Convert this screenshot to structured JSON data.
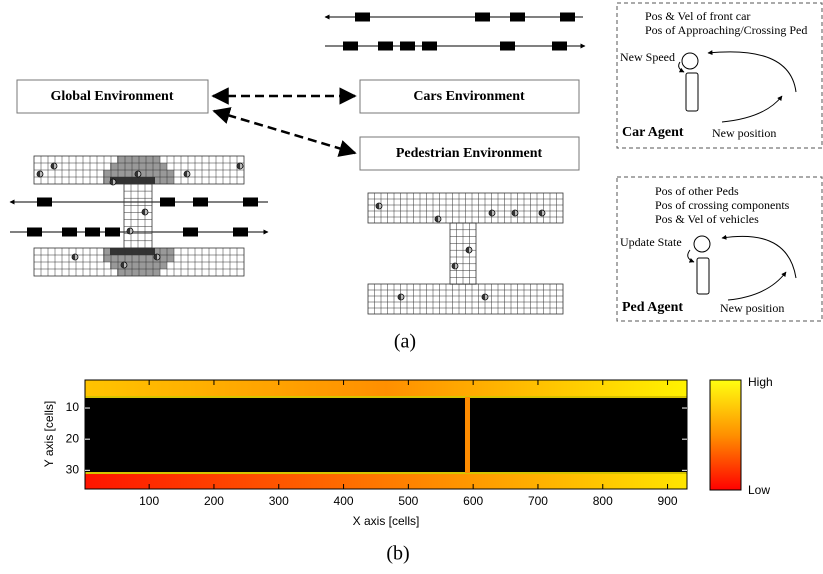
{
  "figure_a": {
    "global_environment": "Global Environment",
    "cars_environment": "Cars Environment",
    "pedestrian_environment": "Pedestrian Environment",
    "car_agent": {
      "inputs": [
        "Pos & Vel of front car",
        "Pos of Approaching/Crossing Ped"
      ],
      "action": "New Speed",
      "title": "Car Agent",
      "output": "New position"
    },
    "ped_agent": {
      "inputs": [
        "Pos of other Peds",
        "Pos of crossing components",
        "Pos & Vel of vehicles"
      ],
      "action": "Update State",
      "title": "Ped Agent",
      "output": "New position"
    },
    "caption": "(a)"
  },
  "figure_b": {
    "x_label": "X axis [cells]",
    "y_label": "Y axis [cells]",
    "xlim": [
      1,
      930
    ],
    "ylim": [
      1,
      36
    ],
    "xticks": [
      100,
      200,
      300,
      400,
      500,
      600,
      700,
      800,
      900
    ],
    "yticks": [
      10,
      20,
      30
    ],
    "colorbar": {
      "high": "High",
      "low": "Low"
    },
    "caption": "(b)"
  }
}
